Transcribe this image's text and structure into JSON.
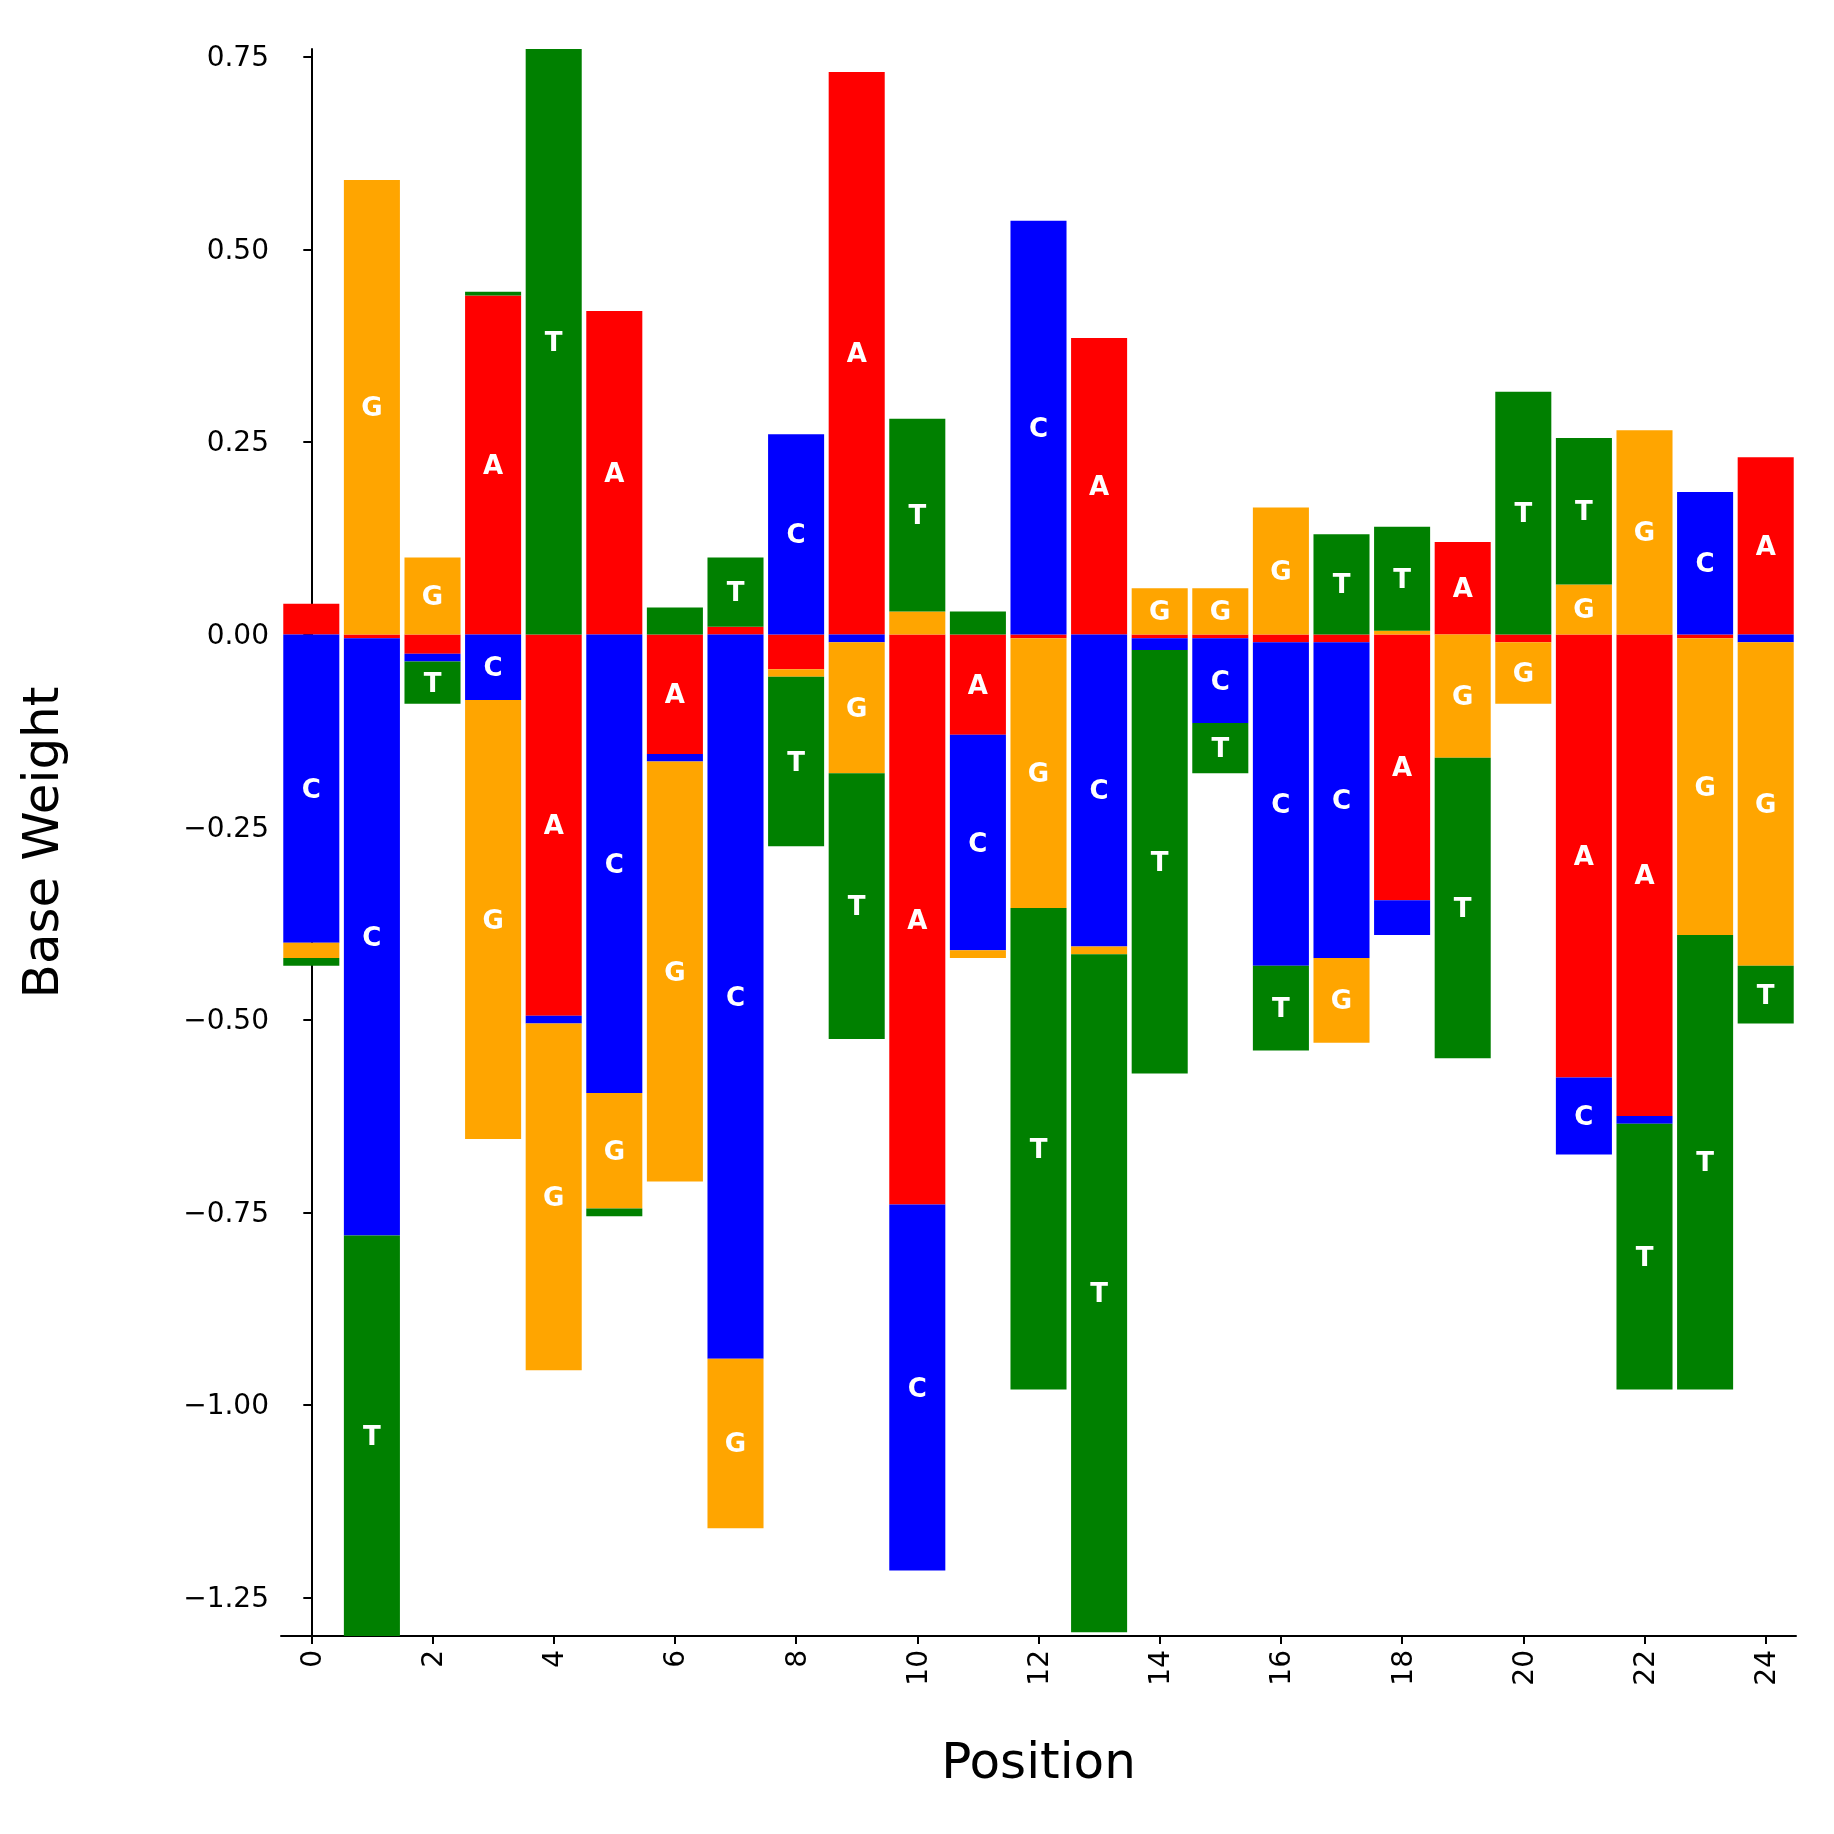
{
  "chart_data": {
    "type": "bar",
    "stacked": true,
    "xlabel": "Position",
    "ylabel": "Base Weight",
    "x": [
      0,
      1,
      2,
      3,
      4,
      5,
      6,
      7,
      8,
      9,
      10,
      11,
      12,
      13,
      14,
      15,
      16,
      17,
      18,
      19,
      20,
      21,
      22,
      23,
      24
    ],
    "series": [
      {
        "name": "A",
        "color": "#ff0000",
        "values": [
          0.04,
          -0.005,
          -0.025,
          0.44,
          -0.495,
          0.42,
          -0.155,
          0.01,
          -0.045,
          0.73,
          -0.74,
          -0.13,
          -0.005,
          0.385,
          -0.005,
          -0.005,
          -0.01,
          -0.01,
          -0.345,
          0.12,
          -0.01,
          -0.575,
          -0.625,
          -0.005,
          0.23
        ]
      },
      {
        "name": "C",
        "color": "#0000ff",
        "values": [
          -0.4,
          -0.775,
          -0.01,
          -0.085,
          -0.01,
          -0.595,
          -0.01,
          -0.94,
          0.26,
          -0.01,
          -0.475,
          -0.28,
          0.537,
          -0.405,
          -0.015,
          -0.11,
          -0.42,
          -0.41,
          -0.045,
          0,
          0,
          -0.1,
          -0.01,
          0.185,
          -0.01
        ]
      },
      {
        "name": "G",
        "color": "#ffa500",
        "values": [
          -0.02,
          0.59,
          0.1,
          -0.57,
          -0.45,
          -0.15,
          -0.545,
          -0.22,
          -0.01,
          -0.17,
          0.03,
          -0.01,
          -0.35,
          -0.01,
          0.06,
          0.06,
          0.165,
          -0.11,
          0.005,
          -0.16,
          -0.08,
          0.065,
          0.265,
          -0.385,
          -0.42
        ]
      },
      {
        "name": "T",
        "color": "#008000",
        "values": [
          -0.01,
          -0.52,
          -0.055,
          0.005,
          0.76,
          -0.01,
          0.035,
          0.09,
          -0.22,
          -0.345,
          0.25,
          0.03,
          -0.625,
          -0.88,
          -0.55,
          -0.065,
          -0.11,
          0.13,
          0.135,
          -0.39,
          0.315,
          0.19,
          -0.345,
          -0.59,
          -0.075
        ]
      }
    ],
    "xlim": [
      -0.5,
      24.5
    ],
    "xticks": [
      0,
      2,
      4,
      6,
      8,
      10,
      12,
      14,
      16,
      18,
      20,
      22,
      24
    ],
    "ylim": [
      -1.3,
      0.76
    ],
    "yticks": [
      {
        "value": -1.25,
        "label": "−1.25"
      },
      {
        "value": -1,
        "label": "−1.00"
      },
      {
        "value": -0.75,
        "label": "−0.75"
      },
      {
        "value": -0.5,
        "label": "−0.50"
      },
      {
        "value": -0.25,
        "label": "−0.25"
      },
      {
        "value": 0,
        "label": "0.00"
      },
      {
        "value": 0.25,
        "label": "0.25"
      },
      {
        "value": 0.5,
        "label": "0.50"
      },
      {
        "value": 0.75,
        "label": "0.75"
      }
    ]
  }
}
